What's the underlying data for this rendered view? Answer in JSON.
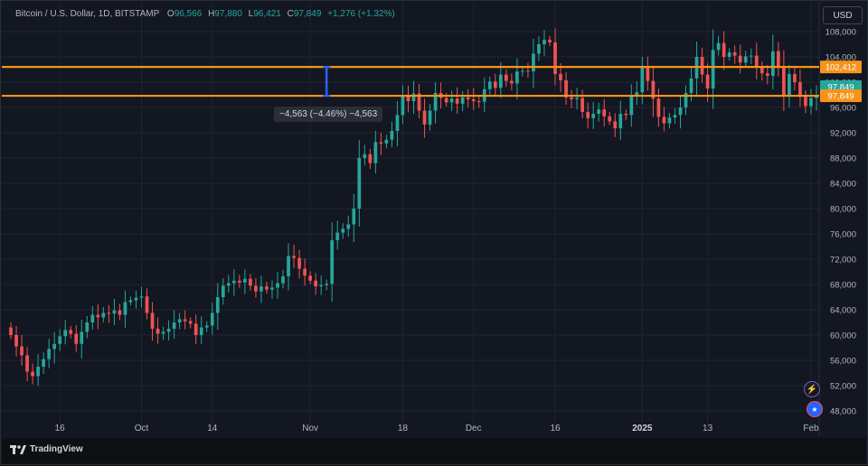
{
  "legend": {
    "symbol": "Bitcoin / U.S. Dollar, 1D, BITSTAMP",
    "open_key": "O",
    "open": "96,566",
    "high_key": "H",
    "high": "97,880",
    "low_key": "L",
    "low": "96,421",
    "close_key": "C",
    "close": "97,849",
    "change": "+1,276 (+1.32%)"
  },
  "currency_button": "USD",
  "brand": "TradingView",
  "measure_label": "−4,563 (−4.46%) −4,563",
  "colors": {
    "up": "#26a69a",
    "down": "#ef5350",
    "level_line": "#f7931a",
    "measure_line": "#2962ff",
    "price_tag_green": "#26a69a",
    "price_tag_orange": "#f7931a"
  },
  "chart_data": {
    "type": "candlestick",
    "title": "Bitcoin / U.S. Dollar, 1D, BITSTAMP",
    "ylim": [
      46000,
      110000
    ],
    "y_ticks": [
      "108,000",
      "104,000",
      "100,000",
      "96,000",
      "92,000",
      "88,000",
      "84,000",
      "80,000",
      "76,000",
      "72,000",
      "68,000",
      "64,000",
      "60,000",
      "56,000",
      "52,000",
      "48,000"
    ],
    "x_ticks": [
      {
        "label": "16",
        "index": 9
      },
      {
        "label": "Oct",
        "index": 24
      },
      {
        "label": "14",
        "index": 37
      },
      {
        "label": "Nov",
        "index": 55
      },
      {
        "label": "18",
        "index": 72
      },
      {
        "label": "Dec",
        "index": 85
      },
      {
        "label": "16",
        "index": 100
      },
      {
        "label": "2025",
        "index": 116
      },
      {
        "label": "13",
        "index": 128
      },
      {
        "label": "Feb",
        "index": 147
      }
    ],
    "grid": true,
    "horizontal_levels": [
      102412,
      97849
    ],
    "price_tags": [
      {
        "label": "102,412",
        "value": 102412,
        "color": "orange"
      },
      {
        "label": "97,849",
        "value": 99300,
        "color": "green"
      },
      {
        "label": "97,849",
        "value": 97849,
        "color": "orange"
      }
    ],
    "measure": {
      "from_value": 102412,
      "to_value": 97849,
      "index": 58
    },
    "closes": [
      60000,
      58200,
      56800,
      54200,
      53500,
      55000,
      56200,
      57800,
      58600,
      59800,
      60800,
      60200,
      58600,
      60500,
      62000,
      63200,
      62800,
      63500,
      63400,
      63900,
      63200,
      65200,
      65500,
      65900,
      66100,
      63500,
      61000,
      60200,
      60500,
      61000,
      62000,
      62500,
      62200,
      61800,
      60000,
      61200,
      61500,
      63500,
      66000,
      67800,
      68200,
      68600,
      68300,
      68900,
      67800,
      66900,
      67700,
      67200,
      67500,
      68200,
      69300,
      72500,
      72200,
      70500,
      69400,
      68600,
      67700,
      67900,
      68100,
      75000,
      76200,
      76800,
      77500,
      80000,
      88000,
      88600,
      87200,
      90500,
      90300,
      90900,
      92300,
      94800,
      98000,
      97000,
      98200,
      95500,
      93300,
      95500,
      98300,
      97500,
      96800,
      97400,
      96600,
      97600,
      97300,
      97000,
      96900,
      98900,
      100100,
      99100,
      101200,
      100200,
      99800,
      101700,
      101800,
      101700,
      104500,
      106000,
      106700,
      106300,
      101300,
      100300,
      97600,
      97300,
      97500,
      95300,
      94300,
      95000,
      95700,
      94600,
      93800,
      92700,
      95000,
      94800,
      97800,
      98400,
      102300,
      100200,
      97400,
      94500,
      93500,
      94400,
      94800,
      96000,
      98300,
      100600,
      104000,
      101200,
      99000,
      105100,
      106200,
      104000,
      104700,
      104200,
      103100,
      104100,
      104200,
      102300,
      101400,
      101000,
      104900,
      102500,
      97700,
      101300,
      100000,
      97700,
      96200,
      97500,
      97850
    ]
  }
}
